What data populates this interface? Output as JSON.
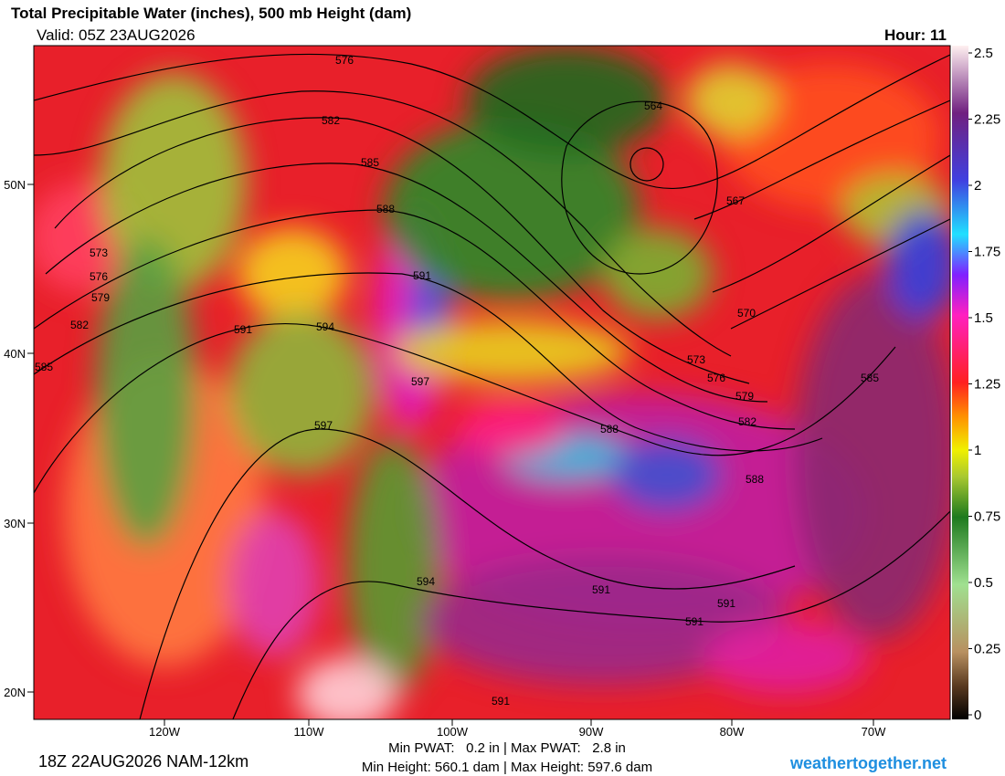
{
  "header": {
    "title": "Total Precipitable Water (inches), 500 mb Height (dam)",
    "valid": "Valid: 05Z 23AUG2026",
    "hour": "Hour: 11"
  },
  "colorbar": {
    "lim": [
      0,
      2.5
    ],
    "ticks": [
      0,
      0.25,
      0.5,
      0.75,
      1,
      1.25,
      1.5,
      1.75,
      2,
      2.25,
      2.5
    ]
  },
  "lat_labels": [
    "50N",
    "40N",
    "30N",
    "20N"
  ],
  "lon_labels": [
    "120W",
    "110W",
    "100W",
    "90W",
    "80W",
    "70W"
  ],
  "contour_labels": [
    576,
    582,
    585,
    588,
    591,
    594,
    591,
    597,
    597,
    573,
    576,
    579,
    582,
    585,
    564,
    567,
    570,
    573,
    576,
    579,
    582,
    585,
    588,
    588,
    591,
    591,
    591,
    594,
    591
  ],
  "footer": {
    "run": "18Z 22AUG2026 NAM-12km",
    "pwat": "Min PWAT:   0.2 in | Max PWAT:   2.8 in",
    "height": "Min Height: 560.1 dam | Max Height: 597.6 dam",
    "brand": "weathertogether.net"
  }
}
